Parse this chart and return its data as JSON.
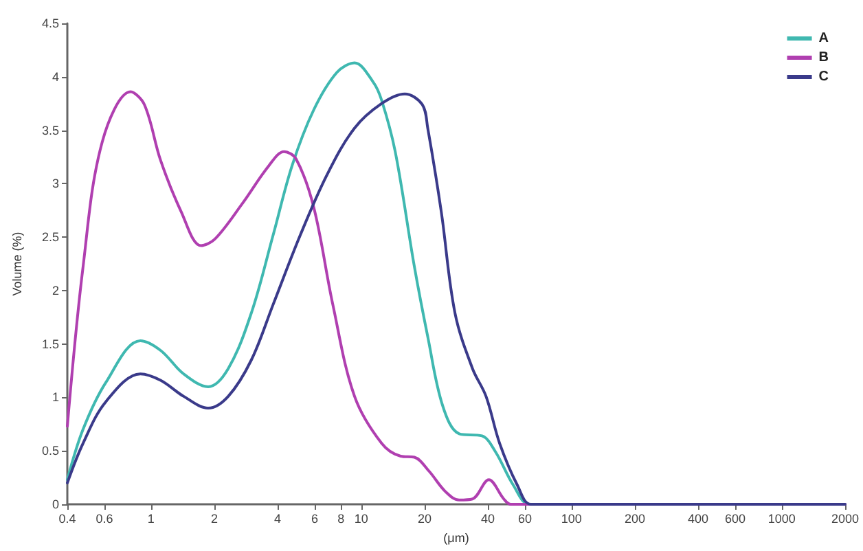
{
  "chart_data": {
    "type": "line",
    "xlabel": "(μm)",
    "ylabel": "Volume (%)",
    "log": "x",
    "xlim": [
      0.4,
      2000
    ],
    "ylim": [
      0,
      4.5
    ],
    "xticks": [
      0.4,
      0.6,
      1,
      2,
      4,
      6,
      8,
      10,
      20,
      40,
      60,
      100,
      200,
      400,
      600,
      1000,
      2000
    ],
    "yticks": [
      0,
      0.5,
      1,
      1.5,
      2,
      2.5,
      3,
      3.5,
      4,
      4.5
    ],
    "grid": false,
    "legend": "top right",
    "marker": "none",
    "line_style": "solid",
    "series": [
      {
        "name": "A",
        "color": "#3fb8b0",
        "x": [
          0.4,
          0.475,
          0.61,
          0.89,
          1.11,
          1.43,
          1.87,
          2.33,
          3.0,
          3.81,
          4.69,
          5.94,
          7.65,
          9.29,
          11.4,
          12.5,
          14.5,
          17.9,
          20.7,
          24.4,
          29.2,
          37.5,
          43.5,
          52.8,
          63.1,
          100,
          2000
        ],
        "values": [
          0.23,
          0.7,
          1.14,
          1.53,
          1.44,
          1.22,
          1.1,
          1.27,
          1.79,
          2.52,
          3.17,
          3.69,
          4.04,
          4.13,
          3.95,
          3.78,
          3.3,
          2.22,
          1.57,
          0.92,
          0.66,
          0.64,
          0.49,
          0.18,
          0,
          0,
          0
        ]
      },
      {
        "name": "B",
        "color": "#b03fb0",
        "x": [
          0.4,
          0.475,
          0.586,
          0.8,
          0.93,
          1.11,
          1.39,
          1.73,
          2.01,
          2.71,
          3.64,
          4.29,
          4.9,
          5.94,
          7.32,
          9.29,
          12.5,
          15.4,
          17.9,
          21.0,
          25.1,
          29.2,
          33.8,
          40.4,
          47.6,
          51.3,
          100,
          2000
        ],
        "values": [
          0.73,
          2.22,
          3.39,
          3.86,
          3.74,
          3.22,
          2.74,
          2.42,
          2.48,
          2.81,
          3.17,
          3.3,
          3.23,
          2.78,
          1.87,
          1.01,
          0.57,
          0.45,
          0.44,
          0.31,
          0.12,
          0.04,
          0.05,
          0.23,
          0.05,
          0,
          0,
          0
        ]
      },
      {
        "name": "C",
        "color": "#3a3a8a",
        "x": [
          0.4,
          0.475,
          0.61,
          0.89,
          1.11,
          1.43,
          1.87,
          2.33,
          3.0,
          3.81,
          5.13,
          6.9,
          9.29,
          12.5,
          16.1,
          19.5,
          20.7,
          24.0,
          27.9,
          33.8,
          39.2,
          45.5,
          55.2,
          64.0,
          100,
          2000
        ],
        "values": [
          0.2,
          0.57,
          0.96,
          1.22,
          1.16,
          1.01,
          0.9,
          1.01,
          1.35,
          1.87,
          2.52,
          3.09,
          3.52,
          3.75,
          3.84,
          3.74,
          3.52,
          2.74,
          1.79,
          1.27,
          1.01,
          0.57,
          0.18,
          0,
          0,
          0
        ]
      }
    ]
  }
}
